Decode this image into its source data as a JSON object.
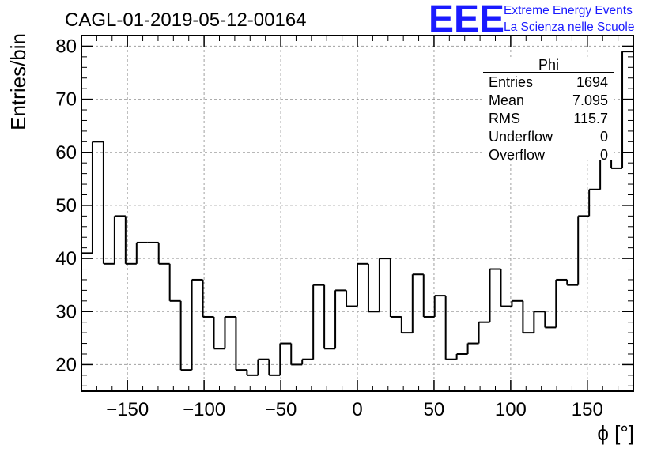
{
  "chart_data": {
    "type": "bar",
    "title": "CAGL-01-2019-05-12-00164",
    "xlabel": "ϕ [°]",
    "ylabel": "Entries/bin",
    "xlim": [
      -180,
      180
    ],
    "ylim": [
      15,
      82
    ],
    "xticks": [
      -150,
      -100,
      -50,
      0,
      50,
      100,
      150
    ],
    "xtick_labels": [
      "−150",
      "−100",
      "−50",
      "0",
      "50",
      "100",
      "150"
    ],
    "yticks": [
      20,
      30,
      40,
      50,
      60,
      70,
      80
    ],
    "ytick_labels": [
      "20",
      "30",
      "40",
      "50",
      "60",
      "70",
      "80"
    ],
    "grid": true,
    "bin_width": 7.2,
    "bin_start": -180,
    "values": [
      41,
      62,
      39,
      48,
      39,
      43,
      43,
      39,
      32,
      19,
      36,
      29,
      23,
      29,
      19,
      18,
      21,
      18,
      24,
      20,
      21,
      35,
      23,
      34,
      31,
      39,
      30,
      40,
      29,
      26,
      37,
      29,
      33,
      21,
      22,
      24,
      28,
      38,
      31,
      32,
      26,
      30,
      27,
      36,
      35,
      48,
      53,
      59,
      57,
      79
    ],
    "stats_box": {
      "title": "Phi",
      "rows": [
        {
          "label": "Entries",
          "value": "1694"
        },
        {
          "label": "Mean",
          "value": "7.095"
        },
        {
          "label": "RMS",
          "value": "115.7"
        },
        {
          "label": "Underflow",
          "value": "0"
        },
        {
          "label": "Overflow",
          "value": "0"
        }
      ]
    }
  },
  "logo": {
    "text": "EEE",
    "line1": "Extreme Energy Events",
    "line2": "La Scienza nelle Scuole",
    "color": "#1a1aff"
  },
  "colors": {
    "line": "#000000",
    "grid": "#a0a0a0"
  }
}
